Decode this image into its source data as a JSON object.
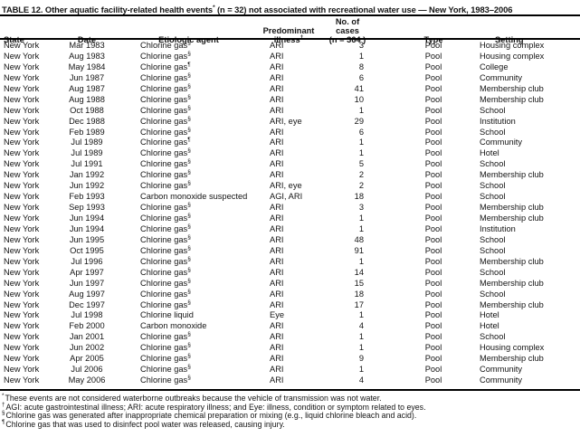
{
  "title": {
    "before_sup": "TABLE 12. Other aquatic facility-related health events",
    "sup": "*",
    "after_sup": " (n = 32) not associated with recreational water use — New York, 1983–2006"
  },
  "headers": {
    "state": "State",
    "date": "Date",
    "agent": "Etiologic agent",
    "illness_line1": "Predominant",
    "illness_line2": "illness",
    "illness_sup": "†",
    "cases_line1": "No. of cases",
    "cases_line2": "(n = 364 )",
    "type": "Type",
    "setting": "Setting"
  },
  "rows": [
    {
      "state": "New York",
      "date": "Mar 1983",
      "agent": "Chlorine gas",
      "agent_sup": "§",
      "illness": "ARI",
      "cases": "3",
      "type": "Pool",
      "setting": "Housing complex"
    },
    {
      "state": "New York",
      "date": "Aug 1983",
      "agent": "Chlorine gas",
      "agent_sup": "§",
      "illness": "ARI",
      "cases": "1",
      "type": "Pool",
      "setting": "Housing complex"
    },
    {
      "state": "New York",
      "date": "May 1984",
      "agent": "Chlorine gas",
      "agent_sup": "¶",
      "illness": "ARI",
      "cases": "8",
      "type": "Pool",
      "setting": "College"
    },
    {
      "state": "New York",
      "date": "Jun 1987",
      "agent": "Chlorine gas",
      "agent_sup": "§",
      "illness": "ARI",
      "cases": "6",
      "type": "Pool",
      "setting": "Community"
    },
    {
      "state": "New York",
      "date": "Aug 1987",
      "agent": "Chlorine gas",
      "agent_sup": "§",
      "illness": "ARI",
      "cases": "41",
      "type": "Pool",
      "setting": "Membership club"
    },
    {
      "state": "New York",
      "date": "Aug 1988",
      "agent": "Chlorine gas",
      "agent_sup": "§",
      "illness": "ARI",
      "cases": "10",
      "type": "Pool",
      "setting": "Membership club"
    },
    {
      "state": "New York",
      "date": "Oct 1988",
      "agent": "Chlorine gas",
      "agent_sup": "§",
      "illness": "ARI",
      "cases": "1",
      "type": "Pool",
      "setting": "School"
    },
    {
      "state": "New York",
      "date": "Dec 1988",
      "agent": "Chlorine gas",
      "agent_sup": "§",
      "illness": "ARI, eye",
      "cases": "29",
      "type": "Pool",
      "setting": "Institution"
    },
    {
      "state": "New York",
      "date": "Feb 1989",
      "agent": "Chlorine gas",
      "agent_sup": "§",
      "illness": "ARI",
      "cases": "6",
      "type": "Pool",
      "setting": "School"
    },
    {
      "state": "New York",
      "date": "Jul 1989",
      "agent": "Chlorine gas",
      "agent_sup": "¶",
      "illness": "ARI",
      "cases": "1",
      "type": "Pool",
      "setting": "Community"
    },
    {
      "state": "New York",
      "date": "Jul 1989",
      "agent": "Chlorine gas",
      "agent_sup": "§",
      "illness": "ARI",
      "cases": "1",
      "type": "Pool",
      "setting": "Hotel"
    },
    {
      "state": "New York",
      "date": "Jul 1991",
      "agent": "Chlorine gas",
      "agent_sup": "§",
      "illness": "ARI",
      "cases": "5",
      "type": "Pool",
      "setting": "School"
    },
    {
      "state": "New York",
      "date": "Jan 1992",
      "agent": "Chlorine gas",
      "agent_sup": "§",
      "illness": "ARI",
      "cases": "2",
      "type": "Pool",
      "setting": "Membership club"
    },
    {
      "state": "New York",
      "date": "Jun 1992",
      "agent": "Chlorine gas",
      "agent_sup": "§",
      "illness": "ARI, eye",
      "cases": "2",
      "type": "Pool",
      "setting": "School"
    },
    {
      "state": "New York",
      "date": "Feb 1993",
      "agent": "Carbon monoxide suspected",
      "agent_sup": "",
      "illness": "AGI, ARI",
      "cases": "18",
      "type": "Pool",
      "setting": "School"
    },
    {
      "state": "New York",
      "date": "Sep 1993",
      "agent": "Chlorine gas",
      "agent_sup": "§",
      "illness": "ARI",
      "cases": "3",
      "type": "Pool",
      "setting": "Membership club"
    },
    {
      "state": "New York",
      "date": "Jun 1994",
      "agent": "Chlorine gas",
      "agent_sup": "§",
      "illness": "ARI",
      "cases": "1",
      "type": "Pool",
      "setting": "Membership club"
    },
    {
      "state": "New York",
      "date": "Jun 1994",
      "agent": "Chlorine gas",
      "agent_sup": "§",
      "illness": "ARI",
      "cases": "1",
      "type": "Pool",
      "setting": "Institution"
    },
    {
      "state": "New York",
      "date": "Jun 1995",
      "agent": "Chlorine gas",
      "agent_sup": "§",
      "illness": "ARI",
      "cases": "48",
      "type": "Pool",
      "setting": "School"
    },
    {
      "state": "New York",
      "date": "Oct 1995",
      "agent": "Chlorine gas",
      "agent_sup": "§",
      "illness": "ARI",
      "cases": "91",
      "type": "Pool",
      "setting": "School"
    },
    {
      "state": "New York",
      "date": "Jul 1996",
      "agent": "Chlorine gas",
      "agent_sup": "§",
      "illness": "ARI",
      "cases": "1",
      "type": "Pool",
      "setting": "Membership club"
    },
    {
      "state": "New York",
      "date": "Apr 1997",
      "agent": "Chlorine gas",
      "agent_sup": "§",
      "illness": "ARI",
      "cases": "14",
      "type": "Pool",
      "setting": "School"
    },
    {
      "state": "New York",
      "date": "Jun 1997",
      "agent": "Chlorine gas",
      "agent_sup": "§",
      "illness": "ARI",
      "cases": "15",
      "type": "Pool",
      "setting": "Membership club"
    },
    {
      "state": "New York",
      "date": "Aug 1997",
      "agent": "Chlorine gas",
      "agent_sup": "§",
      "illness": "ARI",
      "cases": "18",
      "type": "Pool",
      "setting": "School"
    },
    {
      "state": "New York",
      "date": "Dec 1997",
      "agent": "Chlorine gas",
      "agent_sup": "§",
      "illness": "ARI",
      "cases": "17",
      "type": "Pool",
      "setting": "Membership club"
    },
    {
      "state": "New York",
      "date": "Jul 1998",
      "agent": "Chlorine liquid",
      "agent_sup": "",
      "illness": "Eye",
      "cases": "1",
      "type": "Pool",
      "setting": "Hotel"
    },
    {
      "state": "New York",
      "date": "Feb 2000",
      "agent": "Carbon monoxide",
      "agent_sup": "",
      "illness": "ARI",
      "cases": "4",
      "type": "Pool",
      "setting": "Hotel"
    },
    {
      "state": "New York",
      "date": "Jan 2001",
      "agent": "Chlorine gas",
      "agent_sup": "§",
      "illness": "ARI",
      "cases": "1",
      "type": "Pool",
      "setting": "School"
    },
    {
      "state": "New York",
      "date": "Jun 2002",
      "agent": "Chlorine gas",
      "agent_sup": "§",
      "illness": "ARI",
      "cases": "1",
      "type": "Pool",
      "setting": "Housing complex"
    },
    {
      "state": "New York",
      "date": "Apr 2005",
      "agent": "Chlorine gas",
      "agent_sup": "§",
      "illness": "ARI",
      "cases": "9",
      "type": "Pool",
      "setting": "Membership club"
    },
    {
      "state": "New York",
      "date": "Jul 2006",
      "agent": "Chlorine gas",
      "agent_sup": "§",
      "illness": "ARI",
      "cases": "1",
      "type": "Pool",
      "setting": "Community"
    },
    {
      "state": "New York",
      "date": "May 2006",
      "agent": "Chlorine gas",
      "agent_sup": "§",
      "illness": "ARI",
      "cases": "4",
      "type": "Pool",
      "setting": "Community"
    }
  ],
  "footnotes": [
    {
      "sup": "*",
      "text": "These events are not considered waterborne outbreaks because the vehicle of transmission was not water."
    },
    {
      "sup": "†",
      "text": "AGI: acute gastrointestinal illness; ARI: acute respiratory illness; and Eye: illness, condition or symptom related to eyes."
    },
    {
      "sup": "§",
      "text": "Chlorine gas was generated after inappropriate chemical preparation or mixing (e.g., liquid chlorine bleach and acid)."
    },
    {
      "sup": "¶",
      "text": "Chlorine gas that was used to disinfect pool water was released, causing injury."
    }
  ]
}
